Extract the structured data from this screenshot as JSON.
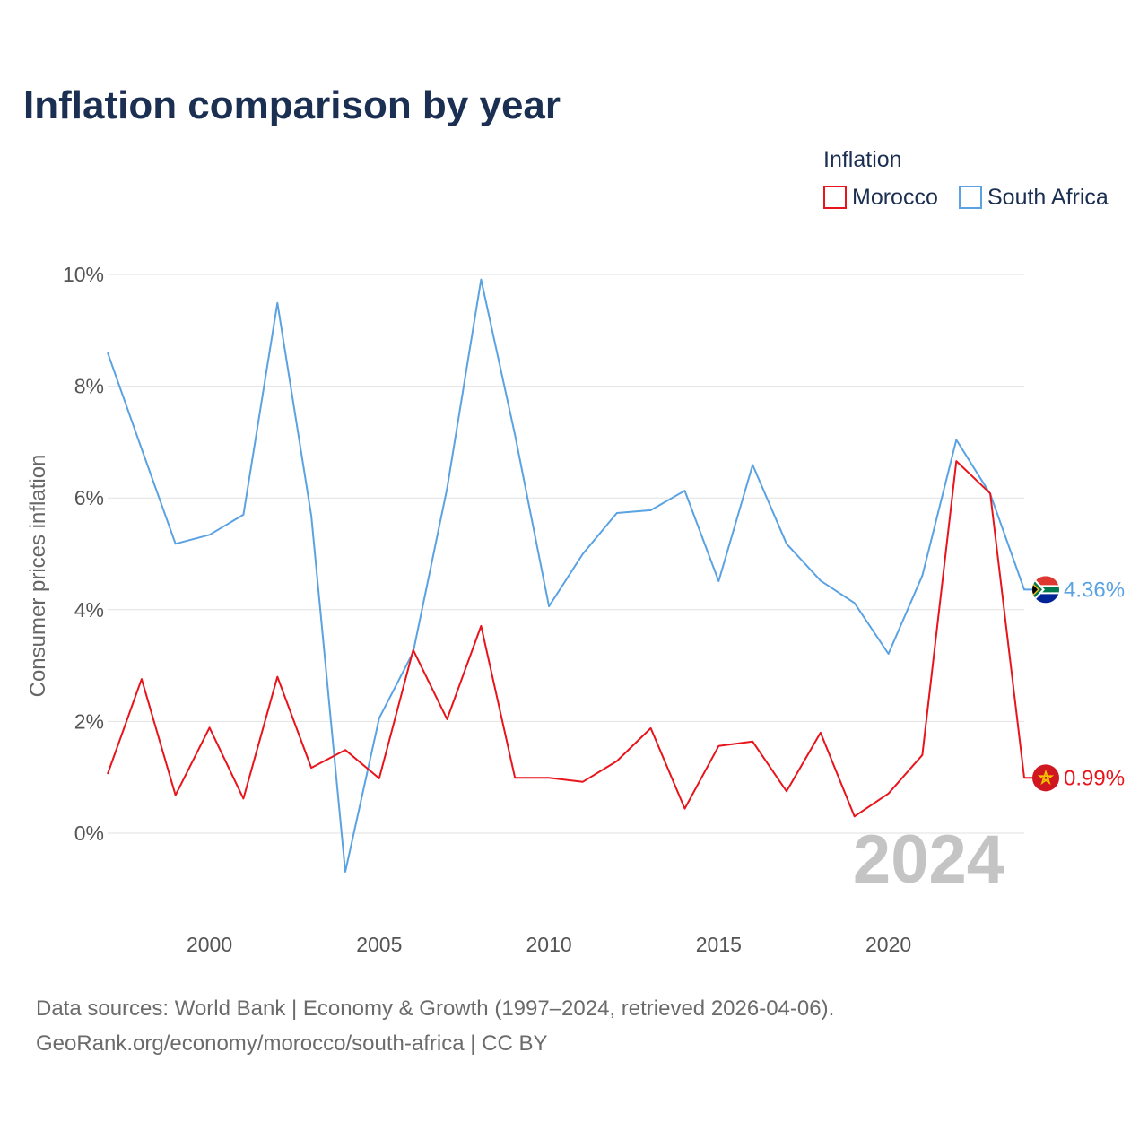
{
  "chart_data": {
    "type": "line",
    "title": "Inflation comparison by year",
    "ylabel": "Consumer prices inflation",
    "xlabel": "",
    "legend_title": "Inflation",
    "legend_placement": "top-right",
    "xlim": [
      1997,
      2024
    ],
    "ylim": [
      -1.2,
      10.3
    ],
    "x_ticks": [
      2000,
      2005,
      2010,
      2015,
      2020
    ],
    "x_tick_labels": [
      "2000",
      "2005",
      "2010",
      "2015",
      "2020"
    ],
    "y_ticks": [
      0,
      2,
      4,
      6,
      8,
      10
    ],
    "y_tick_labels": [
      "0%",
      "2%",
      "4%",
      "6%",
      "8%",
      "10%"
    ],
    "x": [
      1997,
      1998,
      1999,
      2000,
      2001,
      2002,
      2003,
      2004,
      2005,
      2006,
      2007,
      2008,
      2009,
      2010,
      2011,
      2012,
      2013,
      2014,
      2015,
      2016,
      2017,
      2018,
      2019,
      2020,
      2021,
      2022,
      2023,
      2024
    ],
    "series": [
      {
        "name": "Morocco",
        "color": "#e8141b",
        "end_label": "0.99%",
        "flag_icon": "morocco-flag-icon",
        "values": [
          1.06,
          2.76,
          0.68,
          1.89,
          0.62,
          2.8,
          1.17,
          1.49,
          0.98,
          3.28,
          2.04,
          3.71,
          0.99,
          0.99,
          0.92,
          1.29,
          1.88,
          0.44,
          1.56,
          1.64,
          0.75,
          1.8,
          0.3,
          0.71,
          1.4,
          6.66,
          6.08,
          0.99
        ]
      },
      {
        "name": "South Africa",
        "color": "#5aa2e2",
        "end_label": "4.36%",
        "flag_icon": "south-africa-flag-icon",
        "values": [
          8.6,
          6.88,
          5.18,
          5.34,
          5.7,
          9.49,
          5.68,
          -0.69,
          2.06,
          3.24,
          6.17,
          9.91,
          7.13,
          4.06,
          5.0,
          5.73,
          5.78,
          6.13,
          4.51,
          6.59,
          5.18,
          4.52,
          4.12,
          3.21,
          4.61,
          7.04,
          6.07,
          4.36
        ]
      }
    ]
  },
  "watermark_year": "2024",
  "source": {
    "line1": "Data sources: World Bank | Economy & Growth (1997–2024, retrieved 2026-04-06).",
    "line2": "GeoRank.org/economy/morocco/south-africa | CC BY"
  }
}
